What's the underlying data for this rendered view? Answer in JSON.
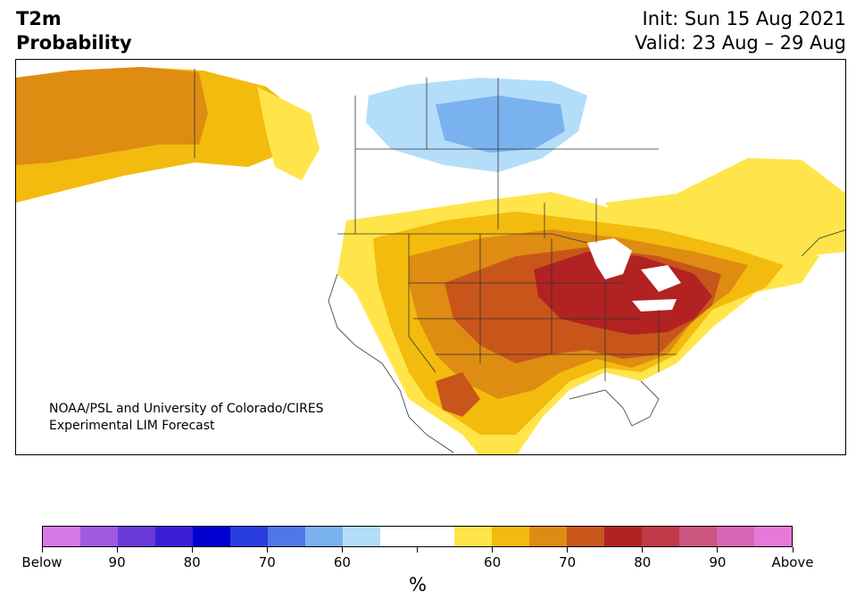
{
  "header": {
    "title_line1": "T2m",
    "title_line2": "Probability",
    "init": "Init: Sun 15 Aug 2021",
    "valid": "Valid: 23 Aug – 29 Aug"
  },
  "credit": {
    "line1": "NOAA/PSL and University of Colorado/CIRES",
    "line2": "Experimental LIM Forecast"
  },
  "colorbar": {
    "colors": [
      "#d579e6",
      "#a05ae0",
      "#6a3ad8",
      "#3a1ed6",
      "#0000d0",
      "#2a3ee0",
      "#4f78e6",
      "#7ab2f0",
      "#b4ddfa",
      "#ffffff",
      "#ffffff",
      "#ffe54a",
      "#f2bb0e",
      "#de8c12",
      "#c8561a",
      "#b22222",
      "#c03a4a",
      "#cc5580",
      "#d866b4",
      "#e77ad8"
    ],
    "tick_labels": [
      "Below",
      "90",
      "80",
      "70",
      "60",
      "",
      "60",
      "70",
      "80",
      "90",
      "Above"
    ],
    "unit": "%"
  },
  "map_colors": {
    "cold_light": "#b4ddfa",
    "cold_mid": "#7ab2f0",
    "warm_55": "#ffe54a",
    "warm_60": "#f2bb0e",
    "warm_70": "#de8c12",
    "warm_75": "#c8561a",
    "warm_80": "#b22222",
    "land": "#ffffff",
    "border": "#333333"
  }
}
